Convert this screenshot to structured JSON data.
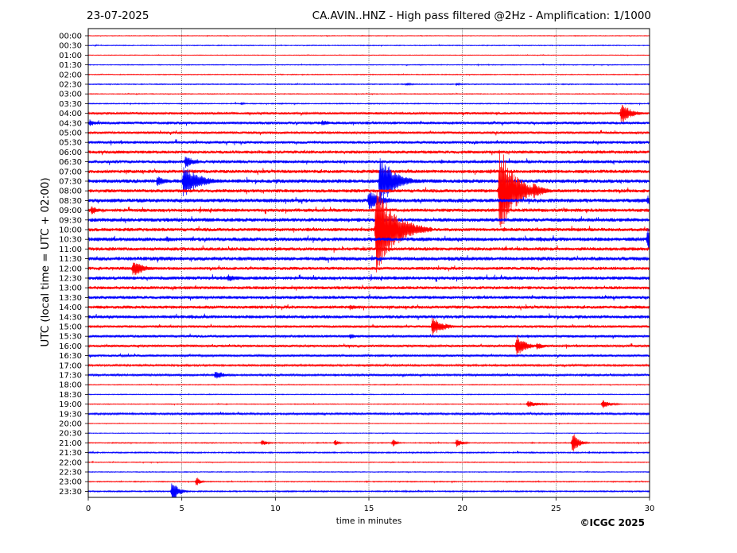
{
  "header": {
    "date": "23-07-2025",
    "title": "CA.AVIN..HNZ - High pass filtered @2Hz - Amplification: 1/1000",
    "credit": "©ICGC 2025"
  },
  "chart_data": {
    "type": "helicorder",
    "xlabel": "time in minutes",
    "ylabel": "UTC (local time = UTC + 02:00)",
    "xlim": [
      0,
      30
    ],
    "x_ticks": [
      0,
      5,
      10,
      15,
      20,
      25,
      30
    ],
    "grid_x": [
      5,
      10,
      15,
      20,
      25
    ],
    "row_labels": [
      "00:00",
      "00:30",
      "01:00",
      "01:30",
      "02:00",
      "02:30",
      "03:00",
      "03:30",
      "04:00",
      "04:30",
      "05:00",
      "05:30",
      "06:00",
      "06:30",
      "07:00",
      "07:30",
      "08:00",
      "08:30",
      "09:00",
      "09:30",
      "10:00",
      "10:30",
      "11:00",
      "11:30",
      "12:00",
      "12:30",
      "13:00",
      "13:30",
      "14:00",
      "14:30",
      "15:00",
      "15:30",
      "16:00",
      "16:30",
      "17:00",
      "17:30",
      "18:00",
      "18:30",
      "19:00",
      "19:30",
      "20:00",
      "20:30",
      "21:00",
      "21:30",
      "22:00",
      "22:30",
      "23:00",
      "23:30"
    ],
    "row_colors": [
      "#ff0000",
      "#0000ff"
    ],
    "noise_levels": [
      0.4,
      0.5,
      0.4,
      0.5,
      0.5,
      0.6,
      0.5,
      0.6,
      1.5,
      1.8,
      1.6,
      1.8,
      2.0,
      2.0,
      2.2,
      2.4,
      2.2,
      2.4,
      2.2,
      2.4,
      2.2,
      2.4,
      2.2,
      2.4,
      2.0,
      2.2,
      2.0,
      2.0,
      2.0,
      2.0,
      1.6,
      1.6,
      1.5,
      1.4,
      1.2,
      1.3,
      0.5,
      0.5,
      0.5,
      1.2,
      0.4,
      0.4,
      0.6,
      0.8,
      0.5,
      0.5,
      0.6,
      0.8
    ],
    "events": [
      {
        "row": 5,
        "t": 17.0,
        "amp": 2,
        "dur": 0.4
      },
      {
        "row": 5,
        "t": 19.7,
        "amp": 2,
        "dur": 0.3
      },
      {
        "row": 7,
        "t": 8.2,
        "amp": 2,
        "dur": 0.2
      },
      {
        "row": 8,
        "t": 28.5,
        "amp": 14,
        "dur": 0.5
      },
      {
        "row": 9,
        "t": 0.1,
        "amp": 5,
        "dur": 0.3
      },
      {
        "row": 9,
        "t": 12.5,
        "amp": 4,
        "dur": 0.5
      },
      {
        "row": 13,
        "t": 5.2,
        "amp": 8,
        "dur": 0.5
      },
      {
        "row": 15,
        "t": 5.1,
        "amp": 22,
        "dur": 0.8
      },
      {
        "row": 15,
        "t": 3.7,
        "amp": 7,
        "dur": 0.5
      },
      {
        "row": 15,
        "t": 15.6,
        "amp": 30,
        "dur": 0.8
      },
      {
        "row": 15,
        "t": 16.0,
        "amp": 22,
        "dur": 0.6
      },
      {
        "row": 16,
        "t": 22.0,
        "amp": 60,
        "dur": 0.8
      },
      {
        "row": 16,
        "t": 23.8,
        "amp": 10,
        "dur": 0.6
      },
      {
        "row": 17,
        "t": 15.0,
        "amp": 12,
        "dur": 0.8
      },
      {
        "row": 17,
        "t": 29.9,
        "amp": 7,
        "dur": 0.4
      },
      {
        "row": 18,
        "t": 0.2,
        "amp": 6,
        "dur": 0.3
      },
      {
        "row": 20,
        "t": 15.4,
        "amp": 60,
        "dur": 1.0
      },
      {
        "row": 20,
        "t": 16.2,
        "amp": 7,
        "dur": 0.4
      },
      {
        "row": 21,
        "t": 29.9,
        "amp": 14,
        "dur": 0.5
      },
      {
        "row": 21,
        "t": 4.2,
        "amp": 4,
        "dur": 0.4
      },
      {
        "row": 24,
        "t": 2.4,
        "amp": 11,
        "dur": 0.6
      },
      {
        "row": 25,
        "t": 7.5,
        "amp": 5,
        "dur": 0.6
      },
      {
        "row": 28,
        "t": 14.0,
        "amp": 4,
        "dur": 0.4
      },
      {
        "row": 30,
        "t": 18.4,
        "amp": 12,
        "dur": 0.6
      },
      {
        "row": 31,
        "t": 14.0,
        "amp": 4,
        "dur": 0.3
      },
      {
        "row": 32,
        "t": 22.9,
        "amp": 14,
        "dur": 0.5
      },
      {
        "row": 32,
        "t": 24.0,
        "amp": 5,
        "dur": 0.4
      },
      {
        "row": 35,
        "t": 6.8,
        "amp": 6,
        "dur": 0.5
      },
      {
        "row": 38,
        "t": 23.5,
        "amp": 4,
        "dur": 0.7
      },
      {
        "row": 38,
        "t": 27.5,
        "amp": 6,
        "dur": 0.4
      },
      {
        "row": 42,
        "t": 25.9,
        "amp": 14,
        "dur": 0.3
      },
      {
        "row": 42,
        "t": 19.7,
        "amp": 6,
        "dur": 0.3
      },
      {
        "row": 42,
        "t": 13.2,
        "amp": 4,
        "dur": 0.2
      },
      {
        "row": 42,
        "t": 16.3,
        "amp": 5,
        "dur": 0.2
      },
      {
        "row": 42,
        "t": 9.3,
        "amp": 4,
        "dur": 0.3
      },
      {
        "row": 46,
        "t": 5.8,
        "amp": 6,
        "dur": 0.2
      },
      {
        "row": 47,
        "t": 4.5,
        "amp": 16,
        "dur": 0.3
      }
    ]
  }
}
